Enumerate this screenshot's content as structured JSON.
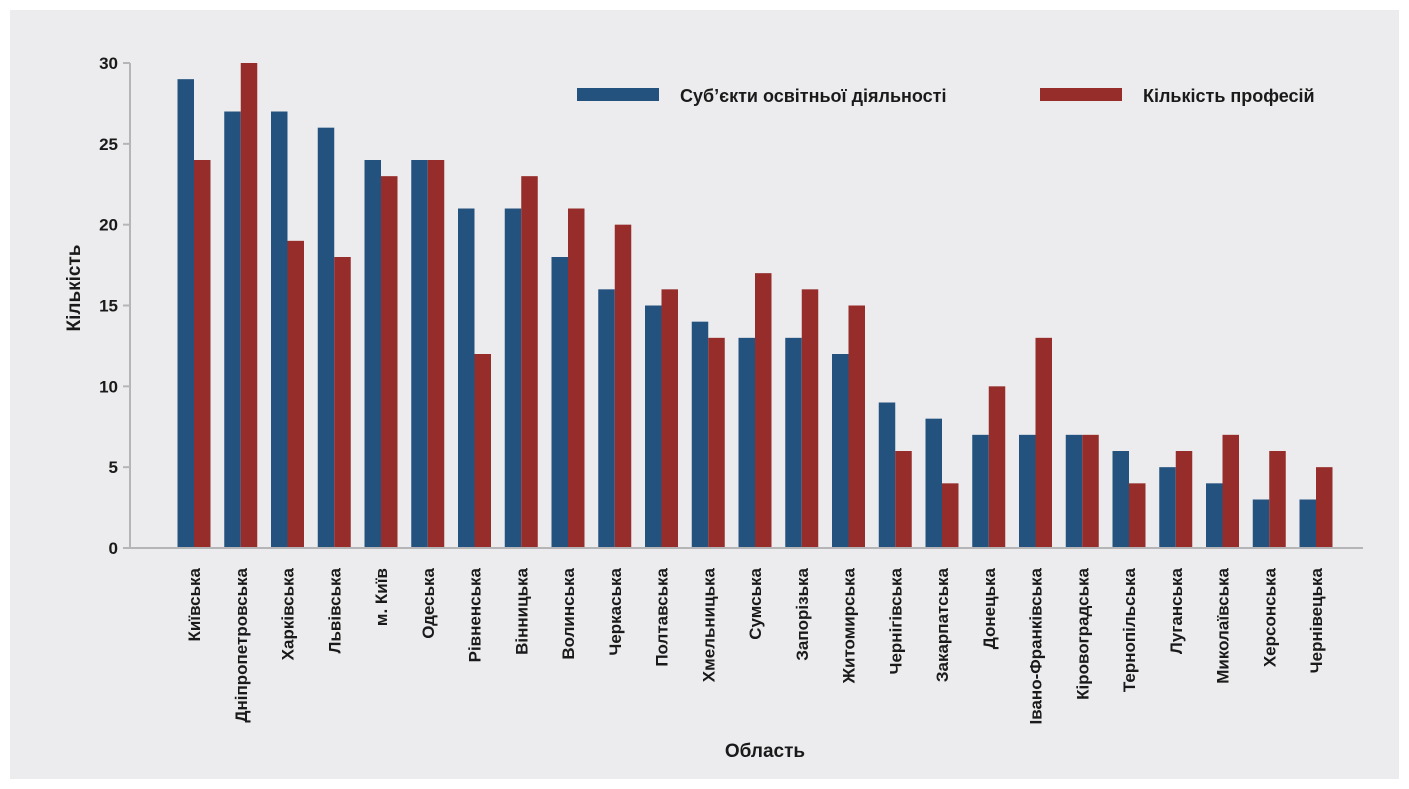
{
  "chart_data": {
    "type": "bar",
    "title": "",
    "xlabel": "Область",
    "ylabel": "Кількість",
    "ylim": [
      0,
      30
    ],
    "yticks": [
      0,
      5,
      10,
      15,
      20,
      25,
      30
    ],
    "grid": false,
    "legend_position": "top-right",
    "categories": [
      "Київська",
      "Дніпропетровська",
      "Харківська",
      "Львівська",
      "м. Київ",
      "Одеська",
      "Рівненська",
      "Вінницька",
      "Волинська",
      "Черкаська",
      "Полтавська",
      "Хмельницька",
      "Сумська",
      "Запорізька",
      "Житомирська",
      "Чернігівська",
      "Закарпатська",
      "Донецька",
      "Івано-Франківська",
      "Кіровоградська",
      "Тернопільська",
      "Луганська",
      "Миколаївська",
      "Херсонська",
      "Чернівецька"
    ],
    "series": [
      {
        "name": "Суб’єкти освітньої діяльності",
        "color": "#24527f",
        "values": [
          29,
          27,
          27,
          26,
          24,
          24,
          21,
          21,
          18,
          16,
          15,
          14,
          13,
          13,
          12,
          9,
          8,
          7,
          7,
          7,
          6,
          5,
          4,
          3,
          3
        ]
      },
      {
        "name": "Кількість професій",
        "color": "#962d2a",
        "values": [
          24,
          30,
          19,
          18,
          23,
          24,
          12,
          23,
          21,
          20,
          16,
          13,
          17,
          16,
          15,
          6,
          4,
          10,
          13,
          7,
          4,
          6,
          7,
          6,
          5
        ]
      }
    ]
  }
}
